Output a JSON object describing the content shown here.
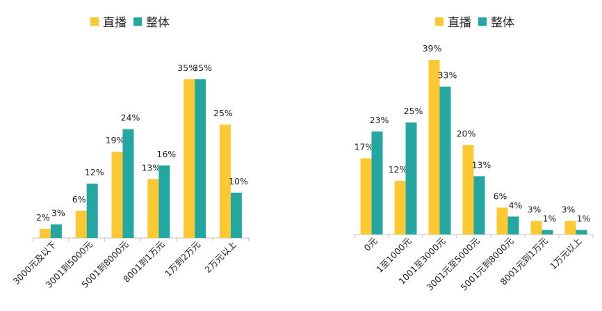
{
  "colors": {
    "live": "#FCC934",
    "overall": "#26A6A0"
  },
  "chart_data": [
    {
      "type": "bar",
      "legend_position": "top",
      "series": [
        {
          "name": "直播",
          "values": [
            2,
            6,
            19,
            13,
            35,
            25
          ]
        },
        {
          "name": "整体",
          "values": [
            3,
            12,
            24,
            16,
            35,
            10
          ]
        }
      ],
      "categories": [
        "3000元及以下",
        "3001到5000元",
        "5001到8000元",
        "8001到1万元",
        "1万到2万元",
        "2万元以上"
      ],
      "value_labels": [
        [
          "2%",
          "6%",
          "19%",
          "13%",
          "35%",
          "25%"
        ],
        [
          "3%",
          "12%",
          "24%",
          "16%",
          "35%",
          "10%"
        ]
      ],
      "ylim": [
        0,
        40
      ],
      "grid": false
    },
    {
      "type": "bar",
      "legend_position": "top",
      "series": [
        {
          "name": "直播",
          "values": [
            17,
            12,
            39,
            20,
            6,
            3,
            3
          ]
        },
        {
          "name": "整体",
          "values": [
            23,
            25,
            33,
            13,
            4,
            1,
            1
          ]
        }
      ],
      "categories": [
        "0元",
        "1至1000元",
        "1001至3000元",
        "3001元至5000元",
        "5001元到8000元",
        "8001元到1万元",
        "1万元以上"
      ],
      "value_labels": [
        [
          "17%",
          "12%",
          "39%",
          "20%",
          "6%",
          "3%",
          "3%"
        ],
        [
          "23%",
          "25%",
          "33%",
          "13%",
          "4%",
          "1%",
          "1%"
        ]
      ],
      "ylim": [
        0,
        44
      ],
      "grid": false
    }
  ]
}
